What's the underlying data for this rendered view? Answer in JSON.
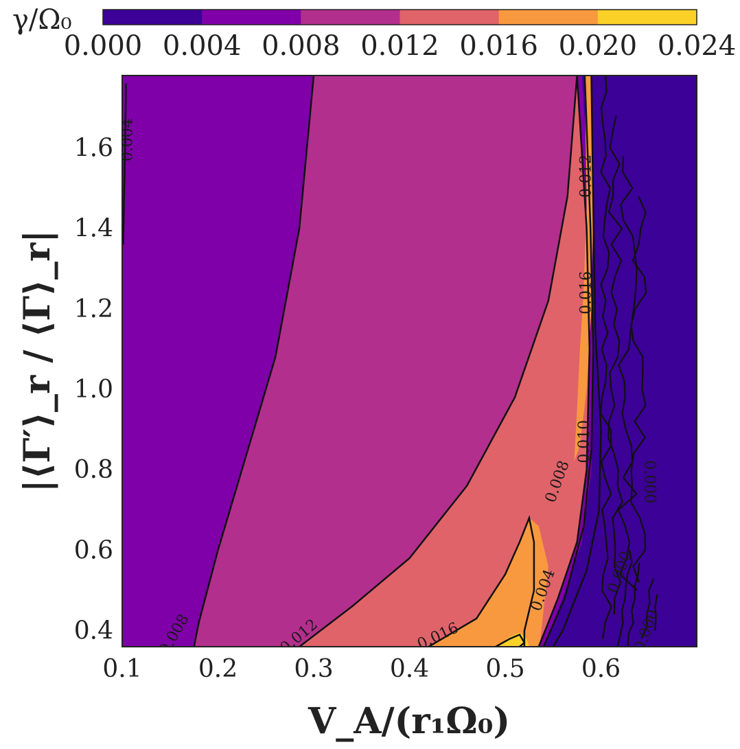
{
  "chart_data": {
    "type": "contour",
    "title": "",
    "xlabel": "V_A/(r₁Ω₀)",
    "ylabel": "|⟨Γ′⟩_r / ⟨Γ⟩_r|",
    "xlim": [
      0.1,
      0.7
    ],
    "ylim": [
      0.36,
      1.78
    ],
    "x_ticks": [
      "0.1",
      "0.2",
      "0.3",
      "0.4",
      "0.5",
      "0.6"
    ],
    "y_ticks": [
      "0.4",
      "0.6",
      "0.8",
      "1.0",
      "1.2",
      "1.4",
      "1.6"
    ],
    "colorbar": {
      "label": "γ/Ω₀",
      "position": "top",
      "ticks": [
        "0.000",
        "0.004",
        "0.008",
        "0.012",
        "0.016",
        "0.020",
        "0.024"
      ],
      "levels": [
        0.0,
        0.004,
        0.008,
        0.012,
        0.016,
        0.02,
        0.024
      ],
      "colors": [
        "#3c0197",
        "#7f00a8",
        "#b32f8d",
        "#e0636a",
        "#f8993f",
        "#fcd127"
      ]
    },
    "contour_lines": [
      {
        "level": 0.004,
        "points": [
          [
            0.101,
            1.36
          ],
          [
            0.103,
            1.6
          ],
          [
            0.104,
            1.76
          ]
        ]
      },
      {
        "level": 0.008,
        "points": [
          [
            0.175,
            0.36
          ],
          [
            0.18,
            0.42
          ],
          [
            0.2,
            0.6
          ],
          [
            0.23,
            0.84
          ],
          [
            0.26,
            1.08
          ],
          [
            0.285,
            1.4
          ],
          [
            0.3,
            1.78
          ]
        ]
      },
      {
        "level": 0.012,
        "points": [
          [
            0.285,
            0.36
          ],
          [
            0.34,
            0.46
          ],
          [
            0.4,
            0.58
          ],
          [
            0.46,
            0.76
          ],
          [
            0.51,
            0.98
          ],
          [
            0.545,
            1.22
          ],
          [
            0.565,
            1.48
          ],
          [
            0.575,
            1.78
          ]
        ]
      },
      {
        "level": 0.016,
        "points": [
          [
            0.42,
            0.36
          ],
          [
            0.47,
            0.43
          ],
          [
            0.5,
            0.54
          ],
          [
            0.515,
            0.62
          ],
          [
            0.525,
            0.68
          ],
          [
            0.53,
            0.62
          ],
          [
            0.53,
            0.5
          ],
          [
            0.52,
            0.4
          ],
          [
            0.52,
            0.36
          ]
        ]
      },
      {
        "level": 0.02,
        "points": [
          [
            0.49,
            0.36
          ],
          [
            0.505,
            0.38
          ],
          [
            0.515,
            0.39
          ],
          [
            0.52,
            0.37
          ],
          [
            0.515,
            0.36
          ]
        ]
      }
    ],
    "contour_labels": [
      {
        "text": "0.004",
        "x": 0.106,
        "y": 1.62,
        "rotation": -90
      },
      {
        "text": "0.008",
        "x": 0.155,
        "y": 0.39,
        "rotation": -60
      },
      {
        "text": "0.012",
        "x": 0.285,
        "y": 0.385,
        "rotation": -40
      },
      {
        "text": "0.016",
        "x": 0.43,
        "y": 0.385,
        "rotation": -25
      },
      {
        "text": "0.012",
        "x": 0.585,
        "y": 1.53,
        "rotation": -90
      },
      {
        "text": "0.016",
        "x": 0.585,
        "y": 1.24,
        "rotation": -90
      },
      {
        "text": "0.010",
        "x": 0.583,
        "y": 0.87,
        "rotation": -90
      },
      {
        "text": "0.008",
        "x": 0.555,
        "y": 0.77,
        "rotation": -70
      },
      {
        "text": "0.004",
        "x": 0.54,
        "y": 0.5,
        "rotation": -70
      },
      {
        "text": "0.000",
        "x": 0.65,
        "y": 0.77,
        "rotation": 90
      },
      {
        "text": "0.000",
        "x": 0.62,
        "y": 0.545,
        "rotation": -70
      },
      {
        "text": "0.000",
        "x": 0.648,
        "y": 0.4,
        "rotation": -70
      }
    ]
  }
}
